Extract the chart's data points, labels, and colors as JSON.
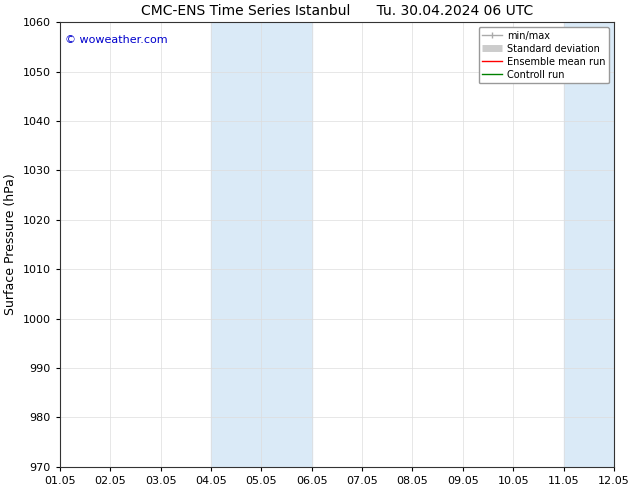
{
  "title_left": "CMC-ENS Time Series Istanbul",
  "title_right": "Tu. 30.04.2024 06 UTC",
  "ylabel": "Surface Pressure (hPa)",
  "ylim": [
    970,
    1060
  ],
  "yticks": [
    970,
    980,
    990,
    1000,
    1010,
    1020,
    1030,
    1040,
    1050,
    1060
  ],
  "xtick_labels": [
    "01.05",
    "02.05",
    "03.05",
    "04.05",
    "05.05",
    "06.05",
    "07.05",
    "08.05",
    "09.05",
    "10.05",
    "11.05",
    "12.05"
  ],
  "n_xticks": 12,
  "watermark": "© woweather.com",
  "watermark_color": "#0000cc",
  "bg_color": "#ffffff",
  "plot_bg_color": "#ffffff",
  "shaded_bands": [
    {
      "xstart": 3,
      "xend": 5,
      "color": "#daeaf7"
    },
    {
      "xstart": 10,
      "xend": 12,
      "color": "#daeaf7"
    }
  ],
  "legend_items": [
    {
      "label": "min/max",
      "color": "#aaaaaa",
      "lw": 1.0,
      "ls": "-"
    },
    {
      "label": "Standard deviation",
      "color": "#cccccc",
      "lw": 5,
      "ls": "-"
    },
    {
      "label": "Ensemble mean run",
      "color": "#ff0000",
      "lw": 1.0,
      "ls": "-"
    },
    {
      "label": "Controll run",
      "color": "#008000",
      "lw": 1.0,
      "ls": "-"
    }
  ],
  "title_fontsize": 10,
  "ylabel_fontsize": 9,
  "tick_fontsize": 8,
  "watermark_fontsize": 8,
  "legend_fontsize": 7
}
